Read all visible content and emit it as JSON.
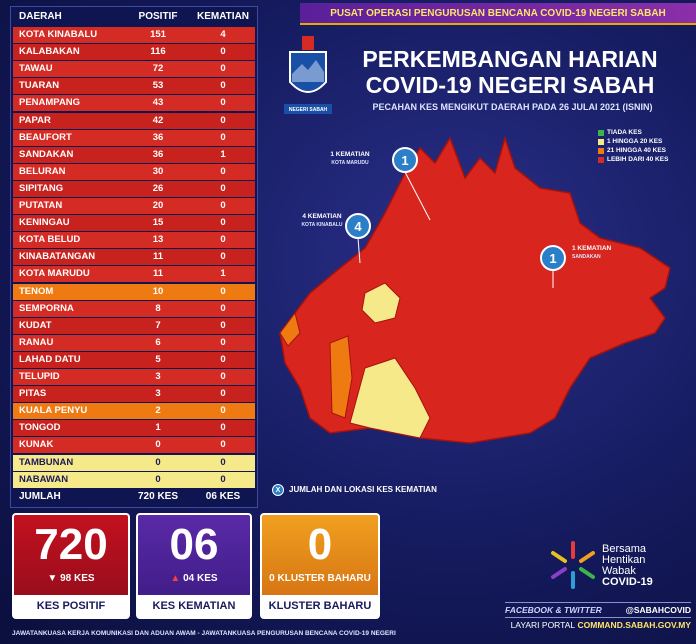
{
  "header": {
    "banner": "PUSAT OPERASI PENGURUSAN BENCANA COVID-19 NEGERI SABAH",
    "title_line1": "PERKEMBANGAN HARIAN",
    "title_line2": "COVID-19 NEGERI SABAH",
    "subtitle": "PECAHAN KES MENGIKUT DAERAH PADA 26 JULAI 2021 (ISNIN)",
    "crest_caption": "NEGERI SABAH"
  },
  "table": {
    "columns": [
      "DAERAH",
      "POSITIF",
      "KEMATIAN"
    ],
    "rows": [
      {
        "daerah": "KOTA KINABALU",
        "positif": 151,
        "kematian": 4,
        "color": "#d52b25"
      },
      {
        "daerah": "KALABAKAN",
        "positif": 116,
        "kematian": 0,
        "color": "#c8221f"
      },
      {
        "daerah": "TAWAU",
        "positif": 72,
        "kematian": 0,
        "color": "#d52b25"
      },
      {
        "daerah": "TUARAN",
        "positif": 53,
        "kematian": 0,
        "color": "#c8221f"
      },
      {
        "daerah": "PENAMPANG",
        "positif": 43,
        "kematian": 0,
        "color": "#d52b25"
      },
      {
        "daerah": "PAPAR",
        "positif": 42,
        "kematian": 0,
        "color": "#c8221f"
      },
      {
        "daerah": "BEAUFORT",
        "positif": 36,
        "kematian": 0,
        "color": "#d52b25"
      },
      {
        "daerah": "SANDAKAN",
        "positif": 36,
        "kematian": 1,
        "color": "#c8221f"
      },
      {
        "daerah": "BELURAN",
        "positif": 30,
        "kematian": 0,
        "color": "#d52b25"
      },
      {
        "daerah": "SIPITANG",
        "positif": 26,
        "kematian": 0,
        "color": "#c8221f"
      },
      {
        "daerah": "PUTATAN",
        "positif": 20,
        "kematian": 0,
        "color": "#d52b25"
      },
      {
        "daerah": "KENINGAU",
        "positif": 15,
        "kematian": 0,
        "color": "#c8221f"
      },
      {
        "daerah": "KOTA BELUD",
        "positif": 13,
        "kematian": 0,
        "color": "#d52b25"
      },
      {
        "daerah": "KINABATANGAN",
        "positif": 11,
        "kematian": 0,
        "color": "#c8221f"
      },
      {
        "daerah": "KOTA MARUDU",
        "positif": 11,
        "kematian": 1,
        "color": "#d52b25"
      },
      {
        "daerah": "TENOM",
        "positif": 10,
        "kematian": 0,
        "color": "#f07a12"
      },
      {
        "daerah": "SEMPORNA",
        "positif": 8,
        "kematian": 0,
        "color": "#d52b25"
      },
      {
        "daerah": "KUDAT",
        "positif": 7,
        "kematian": 0,
        "color": "#c8221f"
      },
      {
        "daerah": "RANAU",
        "positif": 6,
        "kematian": 0,
        "color": "#d52b25"
      },
      {
        "daerah": "LAHAD DATU",
        "positif": 5,
        "kematian": 0,
        "color": "#c8221f"
      },
      {
        "daerah": "TELUPID",
        "positif": 3,
        "kematian": 0,
        "color": "#d52b25"
      },
      {
        "daerah": "PITAS",
        "positif": 3,
        "kematian": 0,
        "color": "#c8221f"
      },
      {
        "daerah": "KUALA PENYU",
        "positif": 2,
        "kematian": 0,
        "color": "#f07a12"
      },
      {
        "daerah": "TONGOD",
        "positif": 1,
        "kematian": 0,
        "color": "#c8221f"
      },
      {
        "daerah": "KUNAK",
        "positif": 0,
        "kematian": 0,
        "color": "#d52b25"
      },
      {
        "daerah": "TAMBUNAN",
        "positif": 0,
        "kematian": 0,
        "color": "#f5e98a"
      },
      {
        "daerah": "NABAWAN",
        "positif": 0,
        "kematian": 0,
        "color": "#f5e98a"
      }
    ],
    "total": {
      "label": "JUMLAH",
      "positif": "720 KES",
      "kematian": "06 KES"
    }
  },
  "legend": [
    {
      "label": "TIADA KES",
      "color": "#3bb54a"
    },
    {
      "label": "1 HINGGA 20 KES",
      "color": "#f5e98a"
    },
    {
      "label": "21 HINGGA 40 KES",
      "color": "#f07a12"
    },
    {
      "label": "LEBIH DARI 40 KES",
      "color": "#d52b25"
    }
  ],
  "map": {
    "deaths": [
      {
        "count": "1",
        "line1": "1 KEMATIAN",
        "line2": "KOTA MARUDU"
      },
      {
        "count": "4",
        "line1": "4 KEMATIAN",
        "line2": "KOTA KINABALU"
      },
      {
        "count": "1",
        "line1": "1 KEMATIAN",
        "line2": "SANDAKAN"
      }
    ],
    "note_marker": "X",
    "note": "JUMLAH DAN LOKASI KES KEMATIAN"
  },
  "summary": [
    {
      "big": "720",
      "change": "98 KES",
      "label": "KES POSITIF"
    },
    {
      "big": "06",
      "change": "04 KES",
      "label": "KES KEMATIAN"
    },
    {
      "big": "0",
      "change": "0 KLUSTER BAHARU",
      "label": "KLUSTER BAHARU"
    }
  ],
  "campaign": {
    "line1": "Bersama",
    "line2": "Hentikan",
    "line3": "Wabak",
    "line4": "COVID-19"
  },
  "social": {
    "label": "FACEBOOK & TWITTER",
    "handle": "@SABAHCOVID",
    "portal_label": "LAYARI PORTAL",
    "portal": "COMMAND.SABAH.GOV.MY"
  },
  "footer": "JAWATANKUASA KERJA KOMUNIKASI DAN ADUAN AWAM - JAWATANKUASA PENGURUSAN BENCANA COVID-19 NEGERI"
}
